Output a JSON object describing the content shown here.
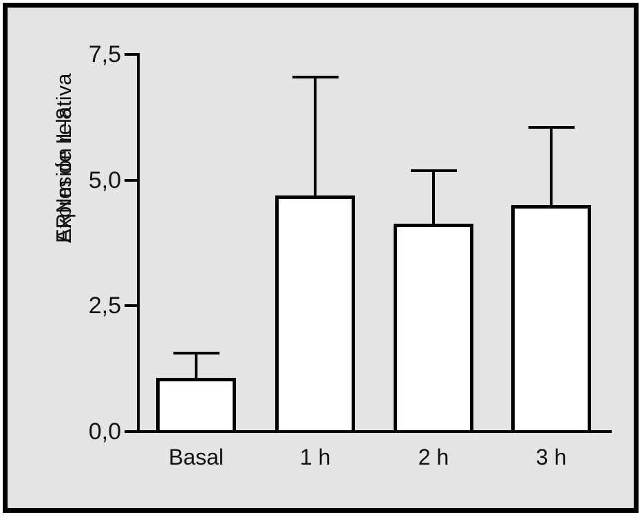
{
  "chart_data": {
    "type": "bar",
    "title": "",
    "categories": [
      "Basal",
      "1 h",
      "2 h",
      "3 h"
    ],
    "values": [
      1.07,
      4.7,
      4.13,
      4.5
    ],
    "errors_plus": [
      0.49,
      2.35,
      1.05,
      1.55
    ],
    "ylabel_line1": "ARNm de IL-8",
    "ylabel_line2": "Expresión relativa",
    "xlabel": "",
    "ytick_values": [
      0.0,
      2.5,
      5.0,
      7.5
    ],
    "ytick_labels": [
      "0,0",
      "2,5",
      "5,0",
      "7,5"
    ],
    "ylim": [
      0,
      7.5
    ],
    "grid": "off",
    "legend": "none",
    "colors": {
      "bar_fill": "#ffffff",
      "bar_stroke": "#000000",
      "axis": "#000000",
      "text": "#111111",
      "plot_background": "#e4e4e4",
      "frame_border": "#000000",
      "page_background": "#ffffff"
    }
  }
}
